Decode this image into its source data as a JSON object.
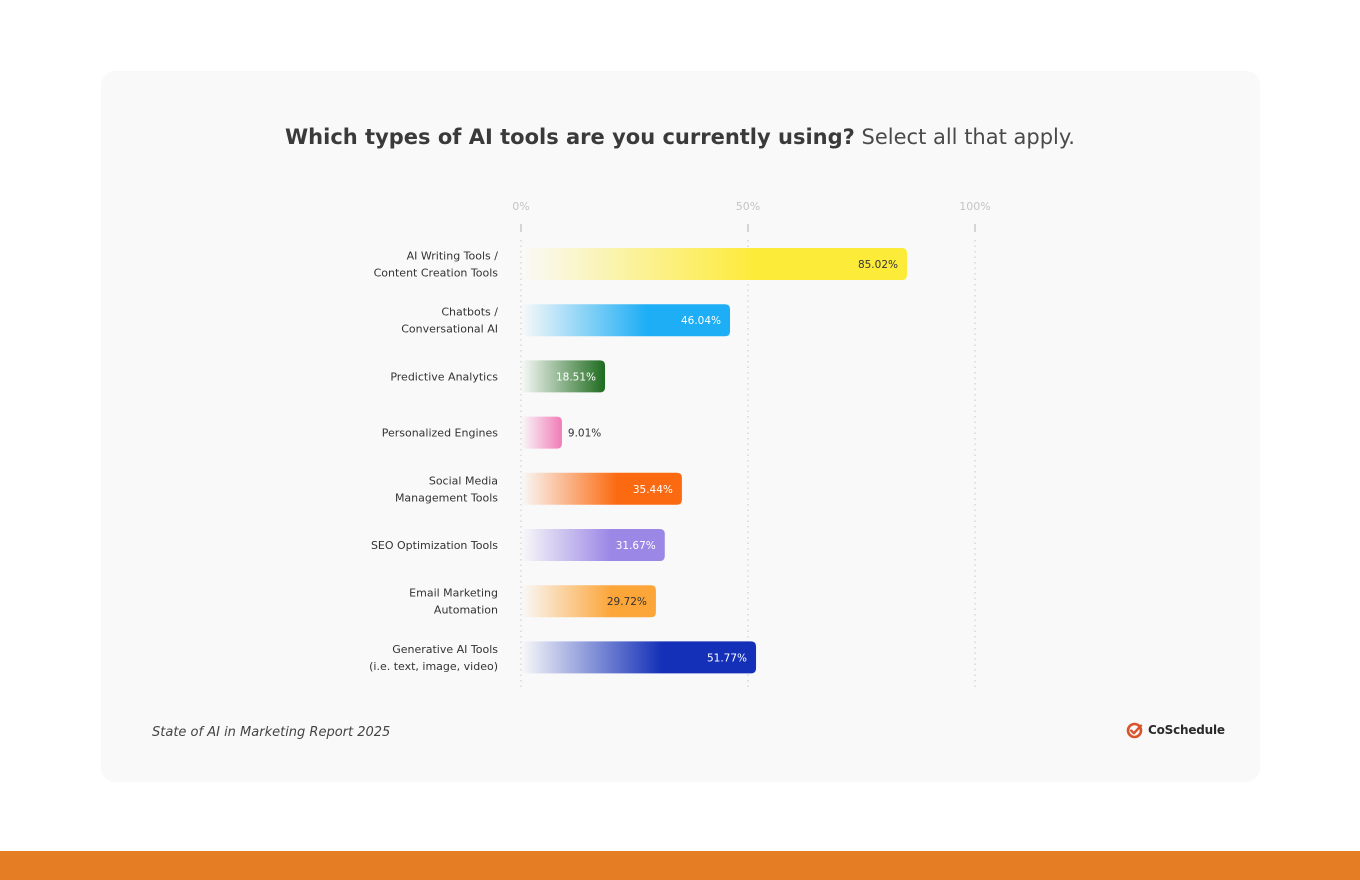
{
  "title": {
    "bold": "Which types of AI tools are you currently using?",
    "light": "Select all that apply."
  },
  "source": "State of AI in Marketing Report 2025",
  "brand": {
    "name": "CoSchedule",
    "icon": "coschedule-check-icon",
    "color": "#d9532b"
  },
  "footer": {
    "color": "#e47d23"
  },
  "chart_data": {
    "type": "bar",
    "orientation": "horizontal",
    "xlim": [
      0,
      100
    ],
    "ticks": [
      {
        "value": 0,
        "label": "0%"
      },
      {
        "value": 50,
        "label": "50%"
      },
      {
        "value": 100,
        "label": "100%"
      }
    ],
    "grid": true,
    "categories": [
      [
        "AI Writing Tools /",
        "Content Creation Tools"
      ],
      [
        "Chatbots /",
        "Conversational AI"
      ],
      [
        "Predictive Analytics"
      ],
      [
        "Personalized Engines"
      ],
      [
        "Social Media",
        "Management Tools"
      ],
      [
        "SEO Optimization Tools"
      ],
      [
        "Email Marketing",
        "Automation"
      ],
      [
        "Generative AI Tools",
        "(i.e. text, image, video)"
      ]
    ],
    "values": [
      85.02,
      46.04,
      18.51,
      9.01,
      35.44,
      31.67,
      29.72,
      51.77
    ],
    "value_labels": [
      "85.02%",
      "46.04%",
      "18.51%",
      "9.01%",
      "35.44%",
      "31.67%",
      "29.72%",
      "51.77%"
    ],
    "colors": [
      "#fdeb3a",
      "#1eaef5",
      "#1e6b1e",
      "#f07cb8",
      "#fb6a10",
      "#9b87e6",
      "#fca63a",
      "#1430b8"
    ],
    "label_colors": [
      "#333333",
      "#ffffff",
      "#ffffff",
      "#333333",
      "#ffffff",
      "#ffffff",
      "#333333",
      "#ffffff"
    ]
  }
}
